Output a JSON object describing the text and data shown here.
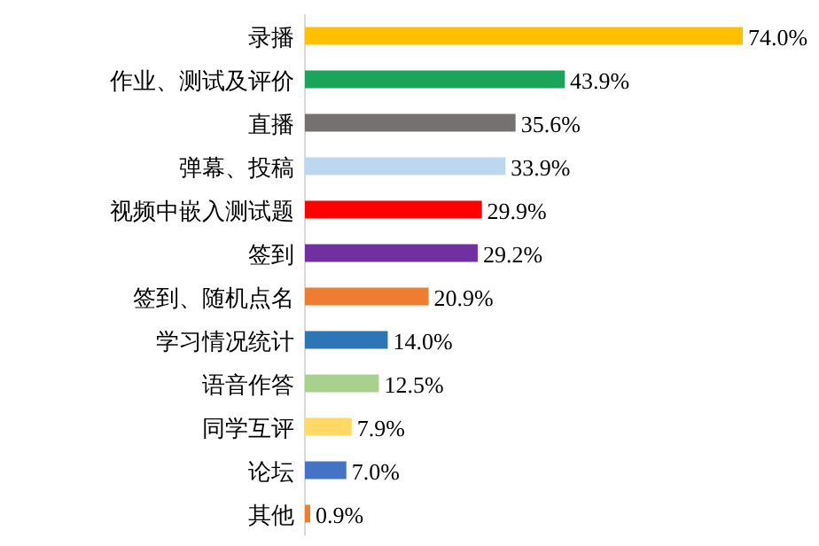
{
  "chart_data": {
    "type": "bar",
    "orientation": "horizontal",
    "categories": [
      "录播",
      "作业、测试及评价",
      "直播",
      "弹幕、投稿",
      "视频中嵌入测试题",
      "签到",
      "签到、随机点名",
      "学习情况统计",
      "语音作答",
      "同学互评",
      "论坛",
      "其他"
    ],
    "values": [
      74.0,
      43.9,
      35.6,
      33.9,
      29.9,
      29.2,
      20.9,
      14.0,
      12.5,
      7.9,
      7.0,
      0.9
    ],
    "colors": [
      "#ffc000",
      "#1aa55a",
      "#767171",
      "#bdd7ee",
      "#ff0000",
      "#7030a0",
      "#ed7d31",
      "#2e75b6",
      "#a9d18e",
      "#ffd966",
      "#4472c4",
      "#ed7d31"
    ],
    "value_labels": [
      "74.0%",
      "43.9%",
      "35.6%",
      "33.9%",
      "29.9%",
      "29.2%",
      "20.9%",
      "14.0%",
      "12.5%",
      "7.9%",
      "7.0%",
      "0.9%"
    ]
  }
}
